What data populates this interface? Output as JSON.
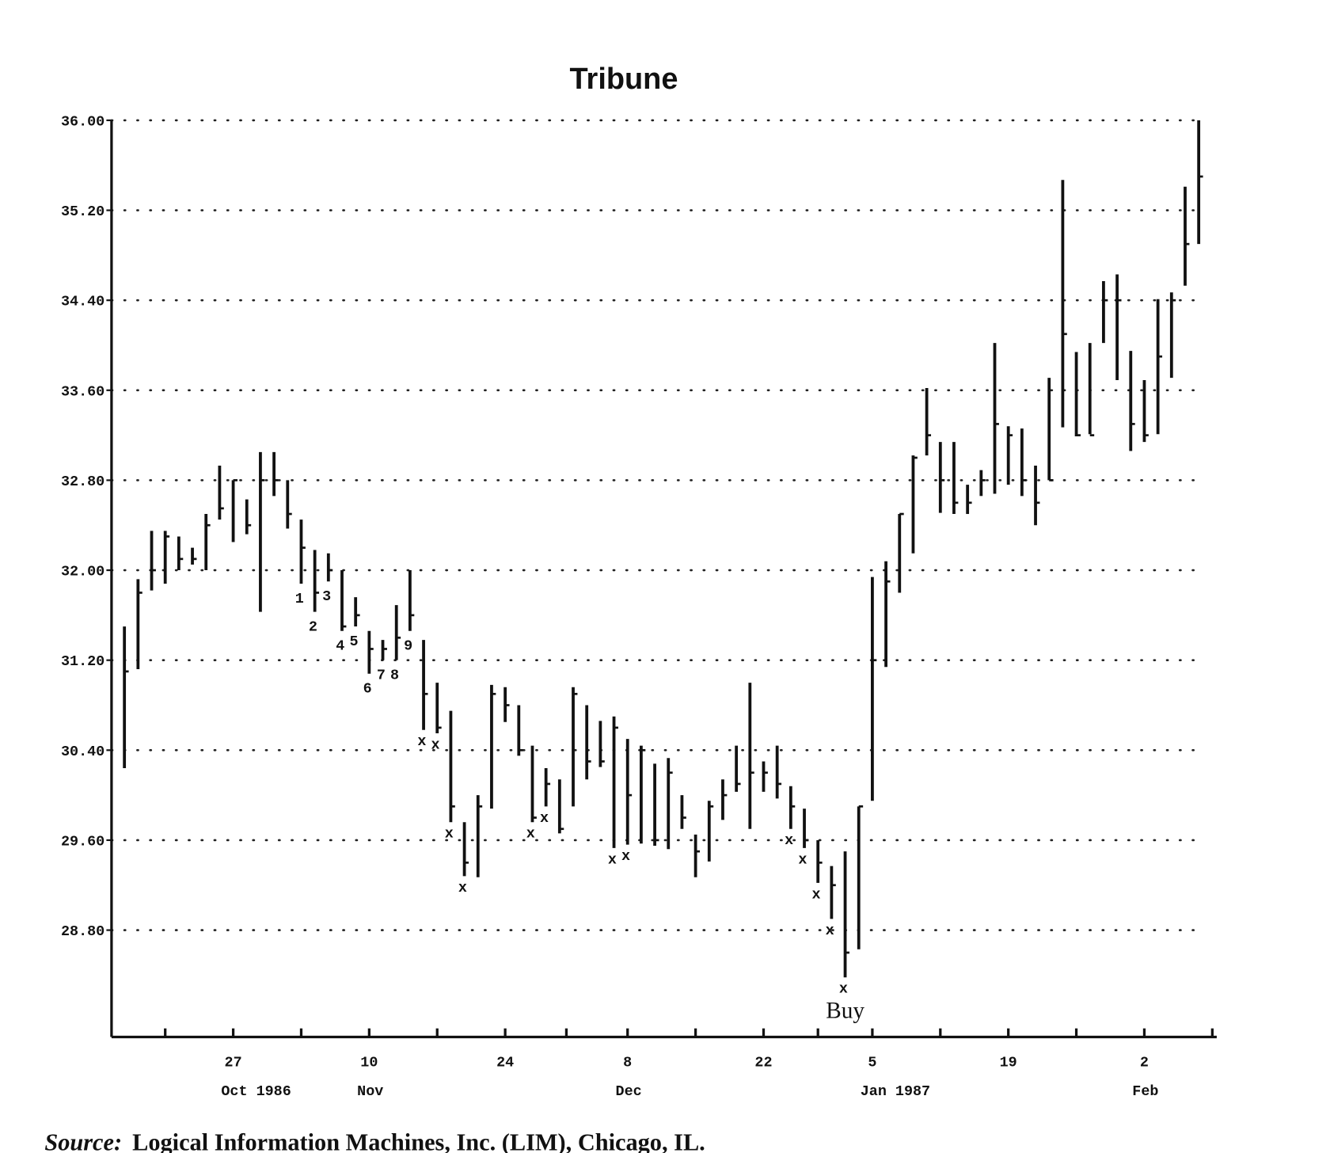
{
  "chart_data": {
    "type": "ohlc",
    "title": "Tribune",
    "color": "#111111",
    "grid": true,
    "ylim": [
      27.85,
      36.0
    ],
    "yticks": [
      {
        "value": 36,
        "label": "36.00"
      },
      {
        "value": 35.2,
        "label": "35.20"
      },
      {
        "value": 34.4,
        "label": "34.40"
      },
      {
        "value": 33.6,
        "label": "33.60"
      },
      {
        "value": 32.8,
        "label": "32.80"
      },
      {
        "value": 32,
        "label": "32.00"
      },
      {
        "value": 31.2,
        "label": "31.20"
      },
      {
        "value": 30.4,
        "label": "30.40"
      },
      {
        "value": 29.6,
        "label": "29.60"
      },
      {
        "value": 28.8,
        "label": "28.80"
      }
    ],
    "categories": [
      null,
      null,
      null,
      null,
      null,
      null,
      null,
      null,
      "27",
      null,
      null,
      null,
      null,
      null,
      null,
      null,
      null,
      null,
      "10",
      null,
      null,
      null,
      null,
      null,
      null,
      null,
      null,
      null,
      "24",
      null,
      null,
      null,
      null,
      null,
      null,
      null,
      null,
      "8",
      null,
      null,
      null,
      null,
      null,
      null,
      null,
      null,
      null,
      "22",
      null,
      null,
      null,
      null,
      null,
      null,
      null,
      "5",
      null,
      null,
      null,
      null,
      null,
      null,
      null,
      null,
      null,
      "19",
      null,
      null,
      null,
      null,
      null,
      null,
      null,
      null,
      null,
      "2",
      null,
      null,
      null,
      null
    ],
    "months": [
      null,
      null,
      null,
      null,
      null,
      null,
      null,
      null,
      "Oct 1986",
      null,
      null,
      null,
      null,
      null,
      null,
      null,
      null,
      null,
      "Nov",
      null,
      null,
      null,
      null,
      null,
      null,
      null,
      null,
      null,
      null,
      null,
      null,
      null,
      null,
      null,
      null,
      null,
      null,
      "Dec",
      null,
      null,
      null,
      null,
      null,
      null,
      null,
      null,
      null,
      null,
      null,
      null,
      null,
      null,
      null,
      null,
      null,
      "Jan 1987",
      null,
      null,
      null,
      null,
      null,
      null,
      null,
      null,
      null,
      null,
      null,
      null,
      null,
      null,
      null,
      null,
      null,
      null,
      null,
      "Feb",
      null,
      null,
      null,
      null
    ],
    "high": [
      31.5,
      31.92,
      32.35,
      32.35,
      32.3,
      32.2,
      32.5,
      32.93,
      32.8,
      32.63,
      33.05,
      33.05,
      32.8,
      32.45,
      32.18,
      32.15,
      32.0,
      31.76,
      31.46,
      31.38,
      31.69,
      32.0,
      31.38,
      31.0,
      30.75,
      29.76,
      30.0,
      30.98,
      30.96,
      30.8,
      30.44,
      30.24,
      30.14,
      30.96,
      30.8,
      30.66,
      30.7,
      30.5,
      30.44,
      30.28,
      30.33,
      30.0,
      29.65,
      29.95,
      30.14,
      30.44,
      31.0,
      30.3,
      30.44,
      30.08,
      29.88,
      29.6,
      29.37,
      29.5,
      29.9,
      31.94,
      32.08,
      32.5,
      33.02,
      33.62,
      33.14,
      33.14,
      32.76,
      32.89,
      34.02,
      33.28,
      33.26,
      32.93,
      33.71,
      35.47,
      33.94,
      34.02,
      34.57,
      34.63,
      33.95,
      33.69,
      34.41,
      34.47,
      35.41,
      36.0
    ],
    "low": [
      30.24,
      31.12,
      31.82,
      31.88,
      32.0,
      32.05,
      32.0,
      32.45,
      32.25,
      32.32,
      31.63,
      32.66,
      32.37,
      31.88,
      31.63,
      31.9,
      31.46,
      31.5,
      31.08,
      31.2,
      31.2,
      31.46,
      30.58,
      30.55,
      29.76,
      29.28,
      29.27,
      29.88,
      30.65,
      30.35,
      29.76,
      29.9,
      29.66,
      29.9,
      30.14,
      30.25,
      29.53,
      29.56,
      29.57,
      29.55,
      29.52,
      29.7,
      29.27,
      29.41,
      29.78,
      30.03,
      29.7,
      30.03,
      29.97,
      29.7,
      29.53,
      29.22,
      28.9,
      28.38,
      28.63,
      29.95,
      31.14,
      31.8,
      32.15,
      33.02,
      32.51,
      32.5,
      32.5,
      32.66,
      32.68,
      32.76,
      32.66,
      32.4,
      32.8,
      33.27,
      33.19,
      33.21,
      34.02,
      33.69,
      33.06,
      33.14,
      33.21,
      33.71,
      34.53,
      34.9
    ],
    "close": [
      31.1,
      31.8,
      32.0,
      32.3,
      32.1,
      32.1,
      32.4,
      32.55,
      32.8,
      32.4,
      32.8,
      32.8,
      32.5,
      32.2,
      31.8,
      32.0,
      31.5,
      31.6,
      31.3,
      31.3,
      31.4,
      31.6,
      30.9,
      30.6,
      29.9,
      29.4,
      29.9,
      30.9,
      30.8,
      30.4,
      29.8,
      30.1,
      29.7,
      30.9,
      30.3,
      30.3,
      30.6,
      30.0,
      30.4,
      29.6,
      30.2,
      29.8,
      29.5,
      29.9,
      30.0,
      30.1,
      30.2,
      30.2,
      30.1,
      29.9,
      29.6,
      29.4,
      29.2,
      28.6,
      29.9,
      31.2,
      31.9,
      32.5,
      33.0,
      33.2,
      32.8,
      32.6,
      32.6,
      32.8,
      33.3,
      33.2,
      32.8,
      32.6,
      32.8,
      34.1,
      33.2,
      33.2,
      34.4,
      34.4,
      33.3,
      33.2,
      33.9,
      34.4,
      34.9,
      35.5
    ],
    "bar_labels": [
      null,
      null,
      null,
      null,
      null,
      null,
      null,
      null,
      null,
      null,
      null,
      null,
      null,
      "1",
      "2",
      "3",
      "4",
      "5",
      "6",
      "7",
      "8",
      "9",
      "x",
      "x",
      "x",
      "x",
      null,
      null,
      null,
      null,
      "x",
      "x",
      null,
      null,
      null,
      null,
      "x",
      "x",
      null,
      null,
      null,
      null,
      null,
      null,
      null,
      null,
      null,
      null,
      null,
      "x",
      "x",
      "x",
      "x",
      "x",
      null,
      null,
      null,
      null,
      null,
      null,
      null,
      null,
      null,
      null,
      null,
      null,
      null,
      null,
      null,
      null,
      null,
      null,
      null,
      null,
      null,
      null,
      null,
      null,
      null,
      null
    ],
    "annotation": "Buy",
    "source_label": "Source:",
    "source": "Logical Information Machines, Inc. (LIM), Chicago, IL."
  }
}
